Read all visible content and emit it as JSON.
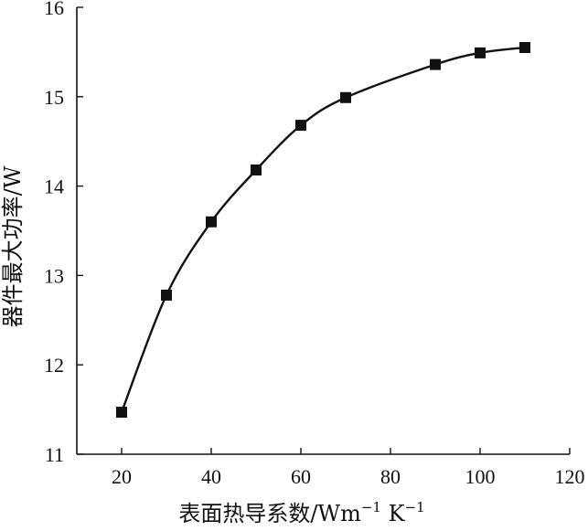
{
  "chart_data": {
    "type": "line",
    "xlabel": "表面热导系数/Wm",
    "xlabel_sup1": "−1",
    "xlabel_mid": " K",
    "xlabel_sup2": "−1",
    "ylabel": "器件最大功率/W",
    "xlim": [
      10,
      120
    ],
    "ylim": [
      11,
      16
    ],
    "xticks": [
      20,
      40,
      60,
      80,
      100,
      120
    ],
    "yticks": [
      11,
      12,
      13,
      14,
      15,
      16
    ],
    "series": [
      {
        "x": [
          20,
          30,
          40,
          50,
          60,
          70,
          90,
          100,
          110
        ],
        "y": [
          11.47,
          12.78,
          13.6,
          14.18,
          14.68,
          14.99,
          15.36,
          15.49,
          15.55
        ],
        "marker": "square",
        "line": "smooth",
        "color": "#111111"
      }
    ],
    "grid": false,
    "legend": "none"
  }
}
